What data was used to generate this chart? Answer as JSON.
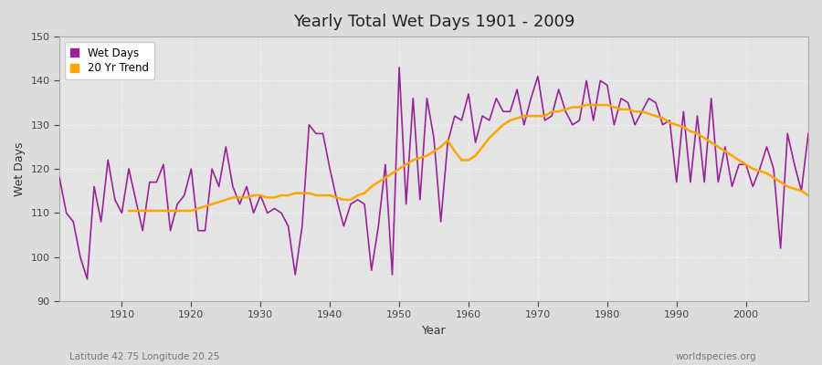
{
  "title": "Yearly Total Wet Days 1901 - 2009",
  "xlabel": "Year",
  "ylabel": "Wet Days",
  "subtitle": "Latitude 42.75 Longitude 20.25",
  "watermark": "worldspecies.org",
  "ylim": [
    90,
    150
  ],
  "xlim": [
    1901,
    2009
  ],
  "wet_days_color": "#992299",
  "trend_color": "#FFA500",
  "bg_color": "#DCDCDC",
  "plot_bg_color": "#E8E8E8",
  "legend_labels": [
    "Wet Days",
    "20 Yr Trend"
  ],
  "years": [
    1901,
    1902,
    1903,
    1904,
    1905,
    1906,
    1907,
    1908,
    1909,
    1910,
    1911,
    1912,
    1913,
    1914,
    1915,
    1916,
    1917,
    1918,
    1919,
    1920,
    1921,
    1922,
    1923,
    1924,
    1925,
    1926,
    1927,
    1928,
    1929,
    1930,
    1931,
    1932,
    1933,
    1934,
    1935,
    1936,
    1937,
    1938,
    1939,
    1940,
    1941,
    1942,
    1943,
    1944,
    1945,
    1946,
    1947,
    1948,
    1949,
    1950,
    1951,
    1952,
    1953,
    1954,
    1955,
    1956,
    1957,
    1958,
    1959,
    1960,
    1961,
    1962,
    1963,
    1964,
    1965,
    1966,
    1967,
    1968,
    1969,
    1970,
    1971,
    1972,
    1973,
    1974,
    1975,
    1976,
    1977,
    1978,
    1979,
    1980,
    1981,
    1982,
    1983,
    1984,
    1985,
    1986,
    1987,
    1988,
    1989,
    1990,
    1991,
    1992,
    1993,
    1994,
    1995,
    1996,
    1997,
    1998,
    1999,
    2000,
    2001,
    2002,
    2003,
    2004,
    2005,
    2006,
    2007,
    2008,
    2009
  ],
  "wet_days": [
    118,
    110,
    108,
    100,
    95,
    116,
    108,
    122,
    113,
    110,
    120,
    113,
    106,
    117,
    117,
    121,
    106,
    112,
    114,
    120,
    106,
    106,
    120,
    116,
    125,
    116,
    112,
    116,
    110,
    114,
    110,
    111,
    110,
    107,
    96,
    107,
    130,
    128,
    128,
    120,
    113,
    107,
    112,
    113,
    112,
    97,
    107,
    121,
    96,
    143,
    112,
    136,
    113,
    136,
    127,
    108,
    126,
    132,
    131,
    137,
    126,
    132,
    131,
    136,
    133,
    133,
    138,
    130,
    136,
    141,
    131,
    132,
    138,
    133,
    130,
    131,
    140,
    131,
    140,
    139,
    130,
    136,
    135,
    130,
    133,
    136,
    135,
    130,
    131,
    117,
    133,
    117,
    132,
    117,
    136,
    117,
    125,
    116,
    121,
    121,
    116,
    120,
    125,
    120,
    102,
    128,
    121,
    115,
    128
  ],
  "trend_years": [
    1911,
    1912,
    1913,
    1914,
    1915,
    1916,
    1917,
    1918,
    1919,
    1920,
    1921,
    1922,
    1923,
    1924,
    1925,
    1926,
    1927,
    1928,
    1929,
    1930,
    1931,
    1932,
    1933,
    1934,
    1935,
    1936,
    1937,
    1938,
    1939,
    1940,
    1941,
    1942,
    1943,
    1944,
    1945,
    1946,
    1947,
    1948,
    1949,
    1950,
    1951,
    1952,
    1953,
    1954,
    1955,
    1956,
    1957,
    1958,
    1959,
    1960,
    1961,
    1962,
    1963,
    1964,
    1965,
    1966,
    1967,
    1968,
    1969,
    1970,
    1971,
    1972,
    1973,
    1974,
    1975,
    1976,
    1977,
    1978,
    1979,
    1980,
    1981,
    1982,
    1983,
    1984,
    1985,
    1986,
    1987,
    1988,
    1989,
    1990,
    1991,
    1992,
    1993,
    1994,
    1995,
    1996,
    1997,
    1998,
    1999,
    2000,
    2001,
    2002,
    2003,
    2004,
    2005,
    2006,
    2007,
    2008,
    2009
  ],
  "trend_values": [
    110.5,
    110.5,
    110.5,
    110.5,
    110.5,
    110.5,
    110.5,
    110.5,
    110.5,
    110.5,
    111.0,
    111.5,
    112.0,
    112.5,
    113.0,
    113.5,
    113.5,
    113.5,
    114.0,
    114.0,
    113.5,
    113.5,
    114.0,
    114.0,
    114.5,
    114.5,
    114.5,
    114.0,
    114.0,
    114.0,
    113.5,
    113.0,
    113.0,
    114.0,
    114.5,
    116.0,
    117.0,
    118.0,
    119.0,
    120.0,
    121.0,
    122.0,
    122.5,
    123.0,
    124.0,
    125.0,
    126.5,
    124.0,
    122.0,
    122.0,
    123.0,
    125.0,
    127.0,
    128.5,
    130.0,
    131.0,
    131.5,
    132.0,
    132.0,
    132.0,
    132.0,
    133.0,
    133.0,
    133.5,
    134.0,
    134.0,
    134.5,
    134.5,
    134.5,
    134.5,
    134.0,
    133.5,
    133.5,
    133.0,
    133.0,
    132.5,
    132.0,
    131.5,
    130.5,
    130.0,
    129.5,
    128.5,
    128.0,
    127.0,
    126.0,
    125.0,
    124.0,
    123.0,
    122.0,
    121.0,
    120.0,
    119.5,
    119.0,
    118.0,
    117.0,
    116.0,
    115.5,
    115.0,
    114.0
  ]
}
